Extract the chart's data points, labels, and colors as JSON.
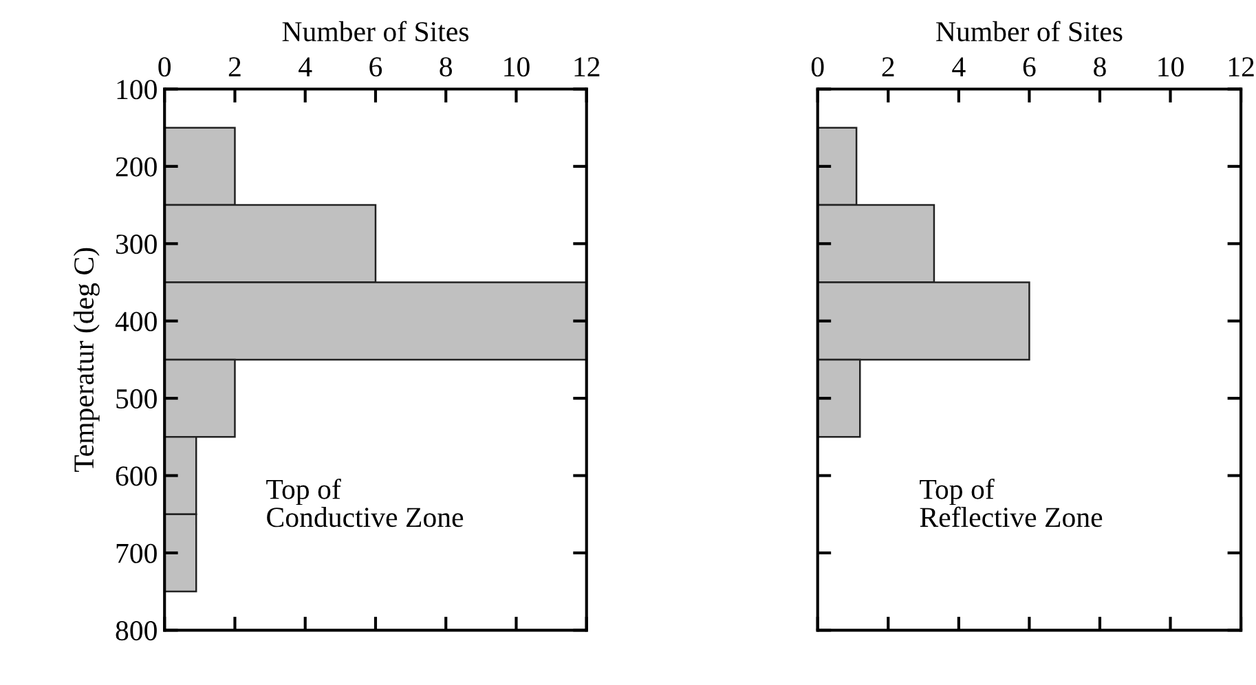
{
  "chart_data": [
    {
      "type": "histogram",
      "orientation": "horizontal",
      "xlabel": "Number of Sites",
      "ylabel": "Temperatur (deg C)",
      "bins": [
        150,
        250,
        350,
        450,
        550,
        650,
        750
      ],
      "values": [
        2,
        6,
        12,
        2,
        0.9,
        0.9
      ],
      "color": "#c0c0c0",
      "xlim": [
        0,
        12
      ],
      "xticks": [
        0,
        2,
        4,
        6,
        8,
        10,
        12
      ],
      "ylim": [
        800,
        100
      ],
      "yticks": [
        100,
        200,
        300,
        400,
        500,
        600,
        700,
        800
      ],
      "annotations": [
        "Top of\nConductive Zone"
      ],
      "legend": false,
      "grid": false
    },
    {
      "type": "histogram",
      "orientation": "horizontal",
      "xlabel": "Number of Sites",
      "bins": [
        150,
        250,
        350,
        450,
        550
      ],
      "values": [
        1.1,
        3.3,
        6.0,
        1.2
      ],
      "color": "#c0c0c0",
      "xlim": [
        0,
        12
      ],
      "xticks": [
        0,
        2,
        4,
        6,
        8,
        10,
        12
      ],
      "ylim": [
        800,
        100
      ],
      "yticks": [
        100,
        200,
        300,
        400,
        500,
        600,
        700,
        800
      ],
      "annotations": [
        "Top of\nReflective Zone"
      ],
      "tick_labels": "x",
      "legend": false,
      "grid": false
    }
  ]
}
